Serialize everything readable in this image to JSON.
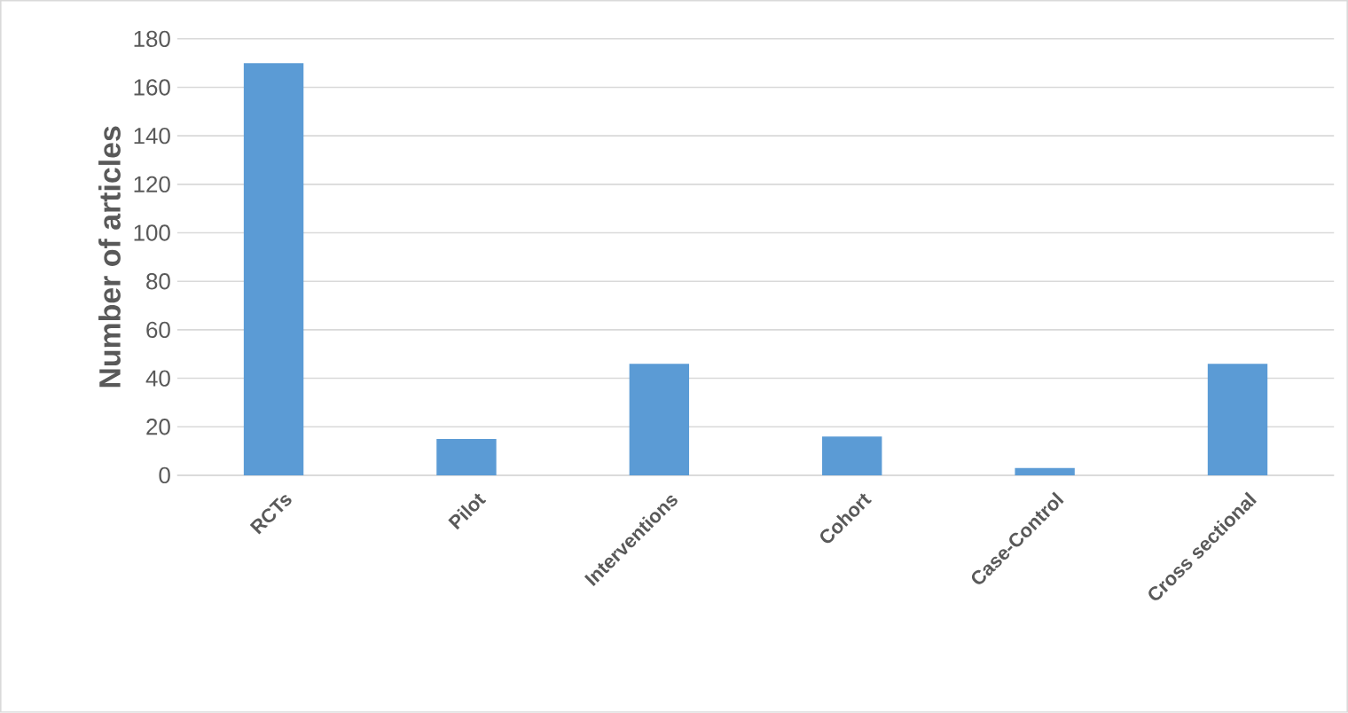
{
  "chart_data": {
    "type": "bar",
    "ylabel": "Number of articles",
    "categories": [
      "RCTs",
      "Pilot",
      "Interventions",
      "Cohort",
      "Case-Control",
      "Cross sectional"
    ],
    "values": [
      170,
      15,
      46,
      16,
      3,
      46
    ],
    "color": "#5b9bd5",
    "ylim": [
      0,
      180
    ],
    "yticks": [
      0,
      20,
      40,
      60,
      80,
      100,
      120,
      140,
      160,
      180
    ],
    "grid": "y"
  }
}
